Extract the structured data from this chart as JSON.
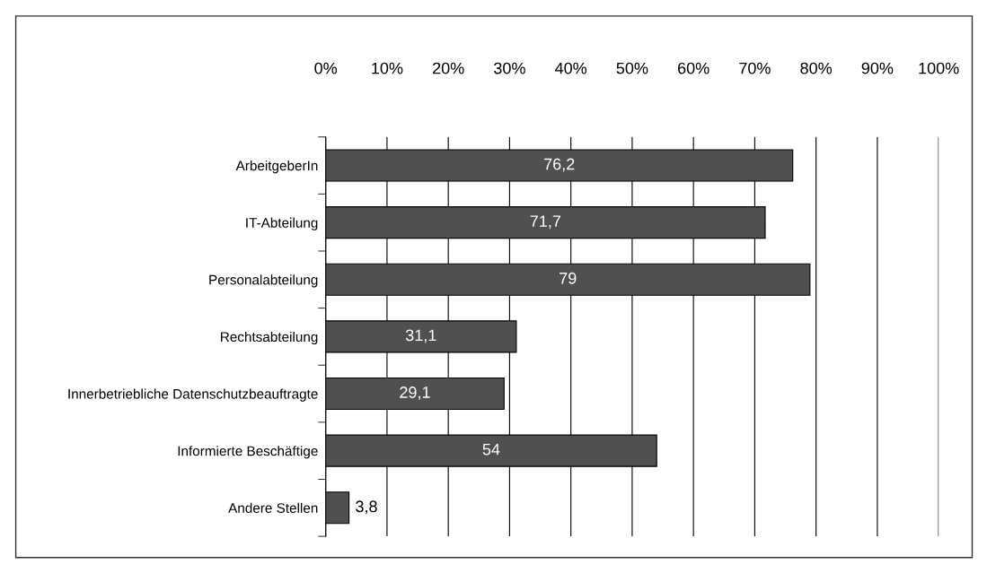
{
  "chart_data": {
    "type": "bar",
    "orientation": "horizontal",
    "categories": [
      "ArbeitgeberIn",
      "IT-Abteilung",
      "Personalabteilung",
      "Rechtsabteilung",
      "Innerbetriebliche Datenschutzbeauftragte",
      "Informierte Beschäftige",
      "Andere Stellen"
    ],
    "values": [
      76.2,
      71.7,
      79,
      31.1,
      29.1,
      54,
      3.8
    ],
    "value_labels": [
      "76,2",
      "71,7",
      "79",
      "31,1",
      "29,1",
      "54",
      "3,8"
    ],
    "color": "#505050",
    "xlim": [
      0,
      100
    ],
    "xticks": [
      {
        "value": 0,
        "label": "0%"
      },
      {
        "value": 10,
        "label": "10%"
      },
      {
        "value": 20,
        "label": "20%"
      },
      {
        "value": 30,
        "label": "30%"
      },
      {
        "value": 40,
        "label": "40%"
      },
      {
        "value": 50,
        "label": "50%"
      },
      {
        "value": 60,
        "label": "60%"
      },
      {
        "value": 70,
        "label": "70%"
      },
      {
        "value": 80,
        "label": "80%"
      },
      {
        "value": 90,
        "label": "90%"
      },
      {
        "value": 100,
        "label": "100%"
      }
    ],
    "grid": "x"
  }
}
